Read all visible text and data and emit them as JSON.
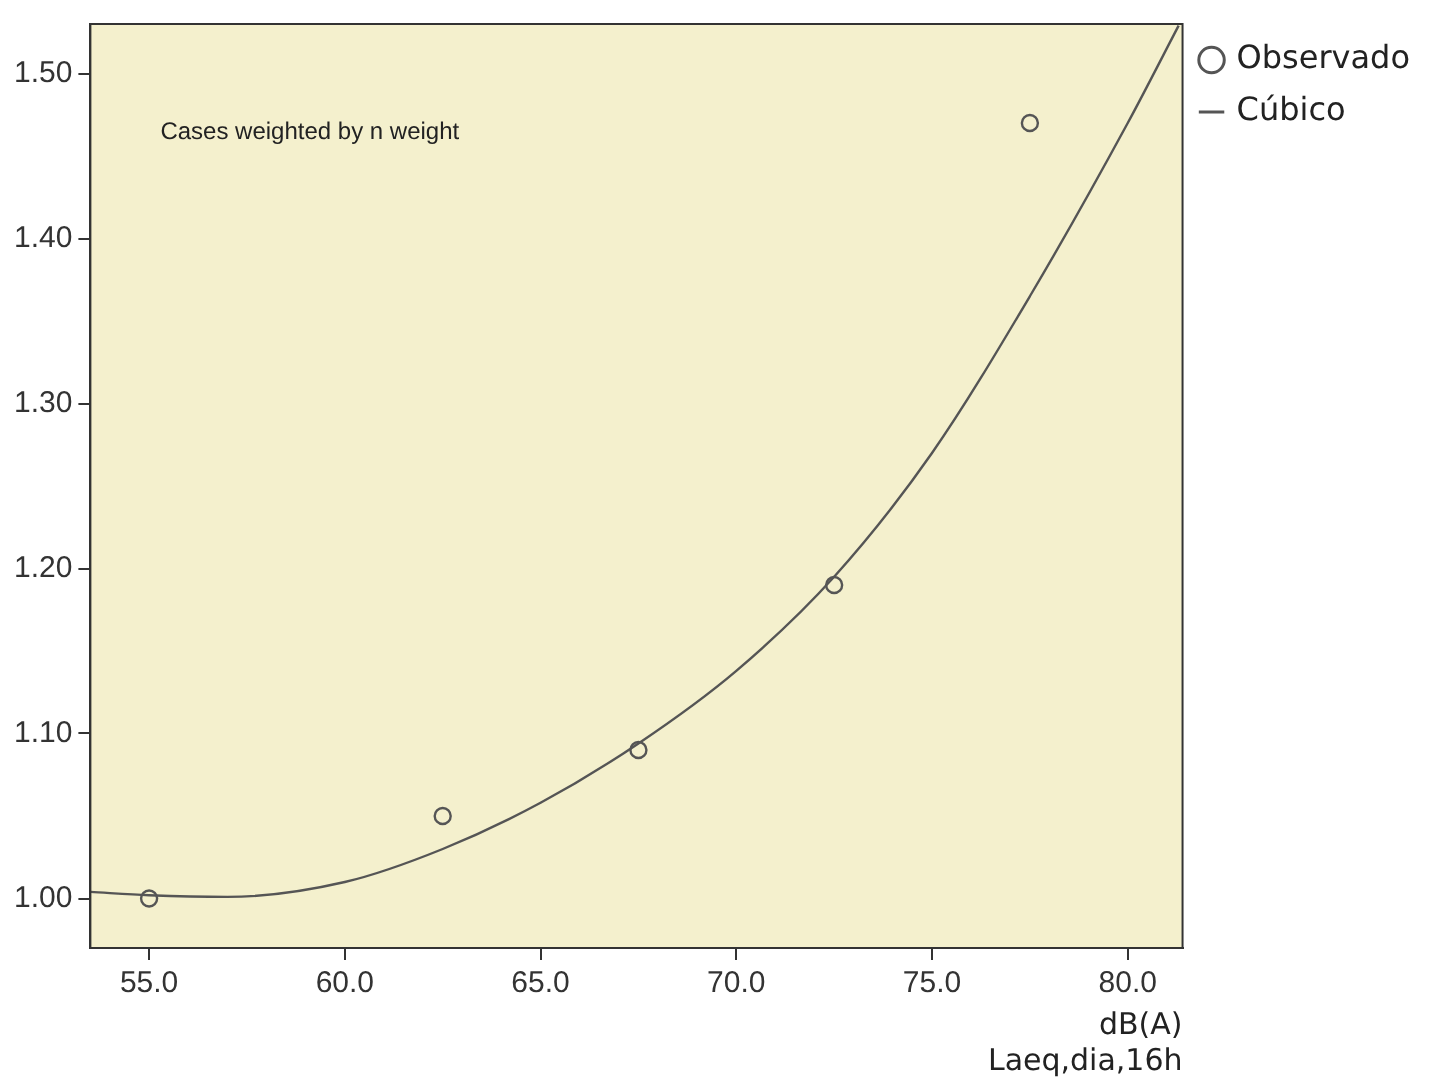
{
  "chart_data": {
    "type": "scatter",
    "xlabel": "dB(A)\nLaeq,dia,16h",
    "annotations": [
      "Cases weighted by n weight"
    ],
    "xlim": [
      53.5,
      81.4
    ],
    "ylim": [
      0.97,
      1.53
    ],
    "xticks": [
      {
        "value": 55,
        "label": "55.0"
      },
      {
        "value": 60,
        "label": "60.0"
      },
      {
        "value": 65,
        "label": "65.0"
      },
      {
        "value": 70,
        "label": "70.0"
      },
      {
        "value": 75,
        "label": "75.0"
      },
      {
        "value": 80,
        "label": "80.0"
      }
    ],
    "yticks": [
      {
        "value": 1,
        "label": "1.00"
      },
      {
        "value": 1.1,
        "label": "1.10"
      },
      {
        "value": 1.2,
        "label": "1.20"
      },
      {
        "value": 1.3,
        "label": "1.30"
      },
      {
        "value": 1.4,
        "label": "1.40"
      },
      {
        "value": 1.5,
        "label": "1.50"
      }
    ],
    "grid": false,
    "legend": "top right",
    "series": [
      {
        "name": "Observado",
        "marker": "circle",
        "color": "#555555",
        "x": [
          55,
          62.5,
          67.5,
          72.5,
          77.5
        ],
        "values": [
          1.0,
          1.05,
          1.09,
          1.19,
          1.47
        ]
      },
      {
        "name": "Cúbico",
        "type": "line",
        "marker": "none",
        "color": "#555555",
        "x": [
          53.5,
          55,
          57,
          60,
          62.5,
          65,
          67.5,
          70,
          72.5,
          75,
          77.5,
          80,
          81.3
        ],
        "values": [
          1.004,
          1.002,
          1.001,
          1.01,
          1.03,
          1.058,
          1.094,
          1.138,
          1.195,
          1.27,
          1.365,
          1.47,
          1.529
        ]
      }
    ]
  }
}
